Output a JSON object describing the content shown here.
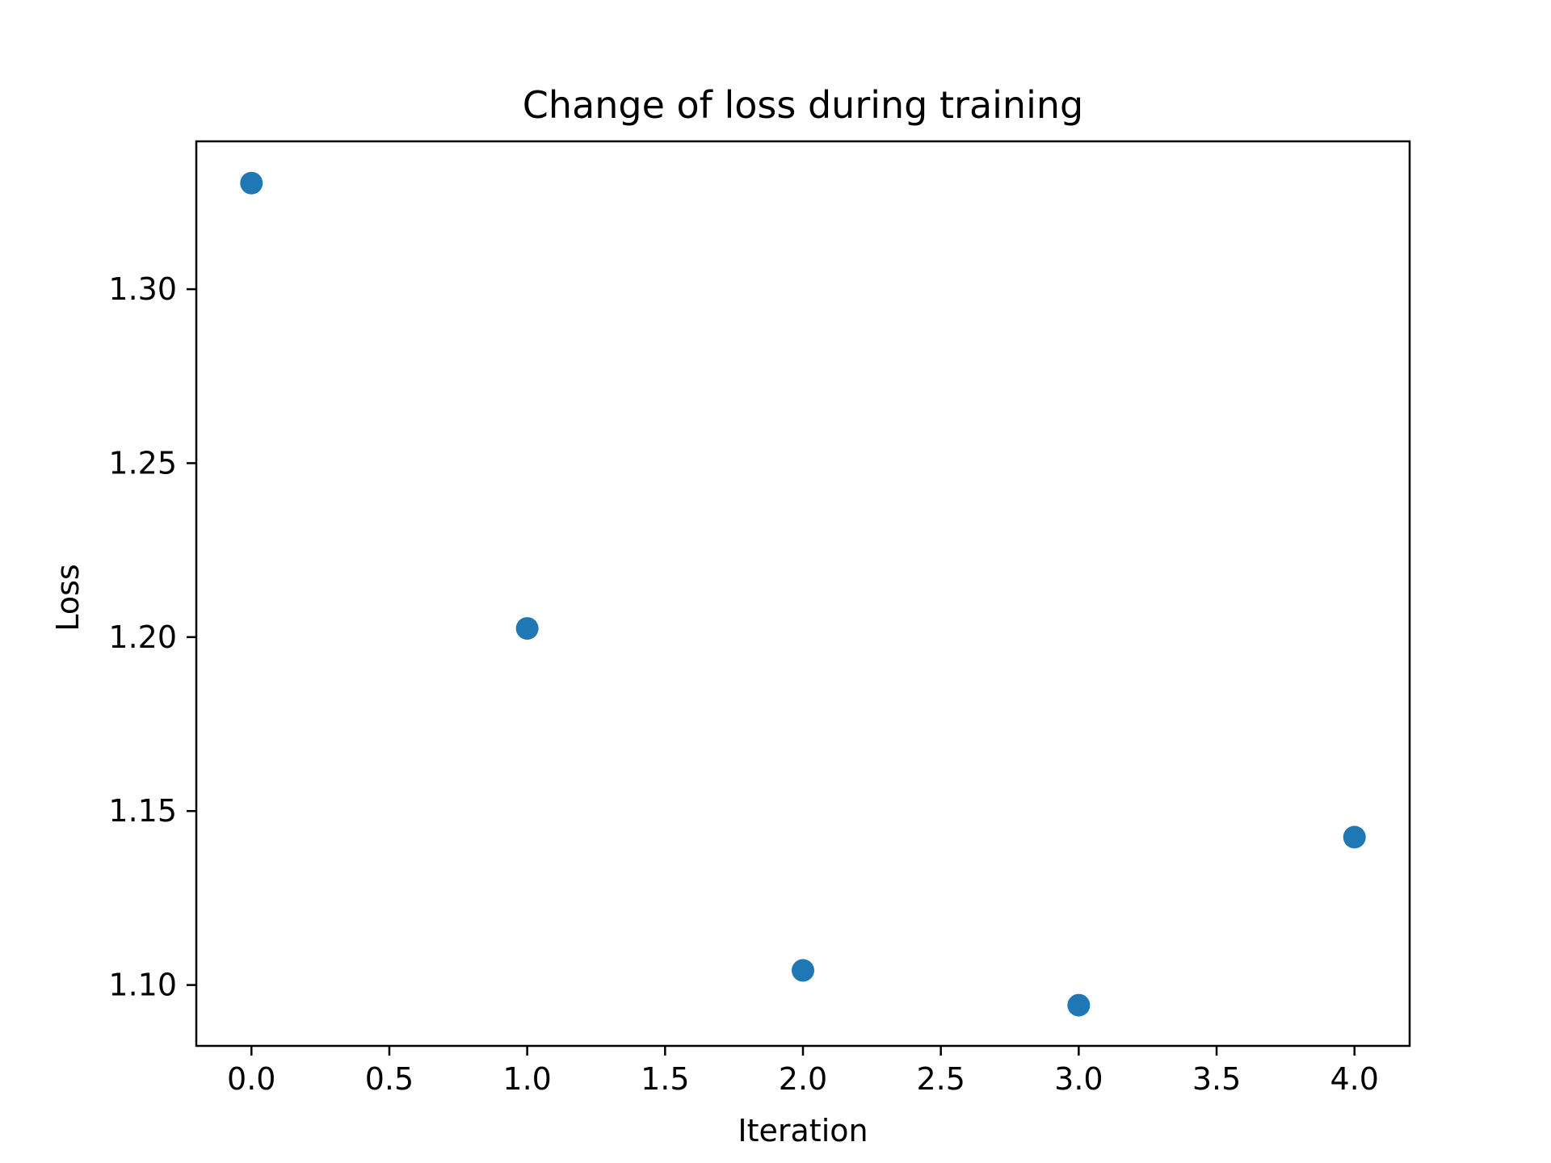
{
  "chart_data": {
    "type": "scatter",
    "title": "Change of loss during training",
    "xlabel": "Iteration",
    "ylabel": "Loss",
    "x": [
      0,
      1,
      2,
      3,
      4
    ],
    "y": [
      1.3305,
      1.2025,
      1.1042,
      1.0942,
      1.1425
    ],
    "xlim": [
      -0.2,
      4.2
    ],
    "ylim": [
      1.0825,
      1.3425
    ],
    "xticks": [
      0.0,
      0.5,
      1.0,
      1.5,
      2.0,
      2.5,
      3.0,
      3.5,
      4.0
    ],
    "xtick_labels": [
      "0.0",
      "0.5",
      "1.0",
      "1.5",
      "2.0",
      "2.5",
      "3.0",
      "3.5",
      "4.0"
    ],
    "yticks": [
      1.1,
      1.15,
      1.2,
      1.25,
      1.3
    ],
    "ytick_labels": [
      "1.10",
      "1.15",
      "1.20",
      "1.25",
      "1.30"
    ],
    "grid": false,
    "marker_color": "#1f77b4"
  }
}
